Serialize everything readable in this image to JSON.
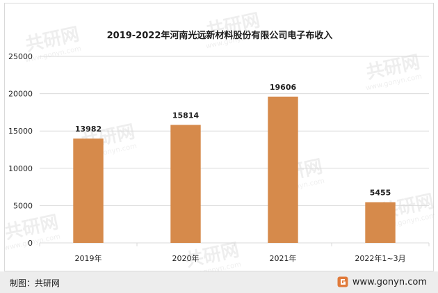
{
  "chart_data": {
    "type": "bar",
    "title": "2019-2022年河南光远新材料股份有限公司电子布收入",
    "categories": [
      "2019年",
      "2020年",
      "2021年",
      "2022年1~3月"
    ],
    "values": [
      13982,
      15814,
      19606,
      5455
    ],
    "data_labels": [
      "13982",
      "15814",
      "19606",
      "5455"
    ],
    "yticks": [
      "0",
      "5000",
      "10000",
      "15000",
      "20000",
      "25000"
    ],
    "ylim": [
      0,
      25000
    ],
    "grid": true,
    "legend": "none",
    "bar_color": "#d68a4b"
  },
  "footer": {
    "credit": "制图：共研网",
    "site": "www.gonyn.com"
  },
  "watermark": {
    "brand": "共研网",
    "url": "www.gonyn.com"
  },
  "colors": {
    "bar": "#d68a4b",
    "grid": "#d9d9d9",
    "footer_bg": "#ededed",
    "logo": "#e07a3a"
  }
}
